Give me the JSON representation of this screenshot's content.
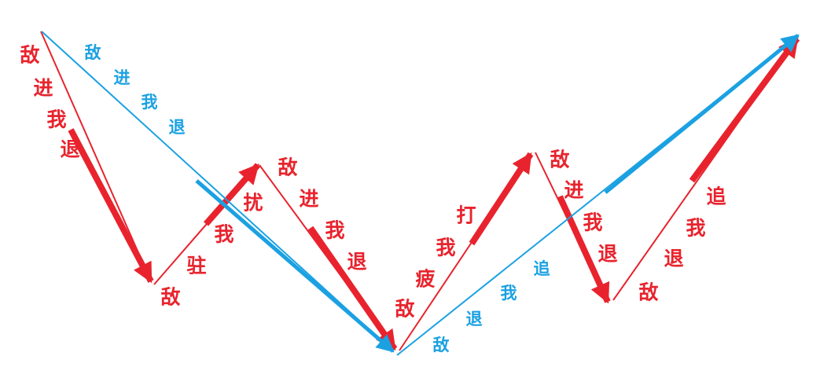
{
  "colors": {
    "red": "#e8232d",
    "blue": "#1ba1e2",
    "background": "#ffffff"
  },
  "blue_path": {
    "color_key": "blue",
    "segments": [
      {
        "name": "blue-line-descending",
        "labels": [
          "敌",
          "进",
          "我",
          "退"
        ]
      },
      {
        "name": "blue-line-ascending",
        "labels": [
          "敌",
          "退",
          "我",
          "追"
        ]
      }
    ]
  },
  "red_path": {
    "color_key": "red",
    "segments": [
      {
        "name": "red-arrow-1-descending",
        "labels": [
          "敌",
          "进",
          "我",
          "退"
        ]
      },
      {
        "name": "red-arrow-2-ascending",
        "labels": [
          "敌",
          "驻",
          "我",
          "扰"
        ]
      },
      {
        "name": "red-arrow-3-descending",
        "labels": [
          "敌",
          "进",
          "我",
          "退"
        ]
      },
      {
        "name": "red-arrow-4-ascending",
        "labels": [
          "敌",
          "疲",
          "我",
          "打"
        ]
      },
      {
        "name": "red-arrow-5-descending",
        "labels": [
          "敌",
          "进",
          "我",
          "退"
        ]
      },
      {
        "name": "red-arrow-6-ascending",
        "labels": [
          "敌",
          "退",
          "我",
          "追"
        ]
      }
    ]
  }
}
